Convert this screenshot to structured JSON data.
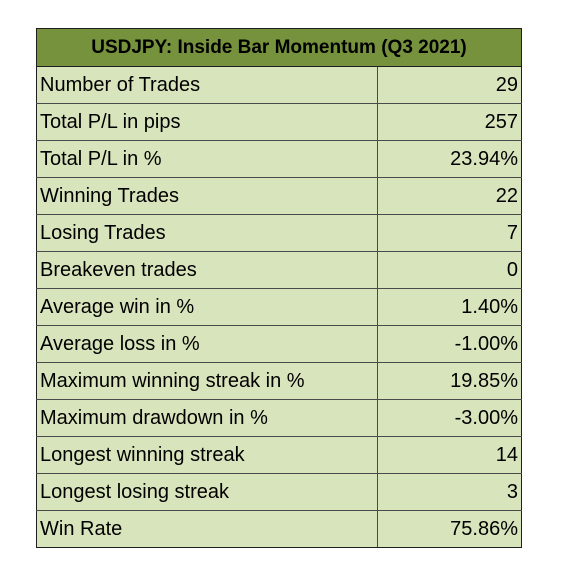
{
  "table": {
    "title": "USDJPY: Inside Bar Momentum (Q3 2021)",
    "header_color": "#76923c",
    "cell_color": "#d8e4bc",
    "rows": [
      {
        "label": "Number of Trades",
        "value": "29"
      },
      {
        "label": "Total P/L in pips",
        "value": "257"
      },
      {
        "label": "Total P/L in %",
        "value": "23.94%"
      },
      {
        "label": "Winning Trades",
        "value": "22"
      },
      {
        "label": "Losing Trades",
        "value": "7"
      },
      {
        "label": "Breakeven trades",
        "value": "0"
      },
      {
        "label": "Average win in %",
        "value": "1.40%"
      },
      {
        "label": "Average loss in %",
        "value": "-1.00%"
      },
      {
        "label": "Maximum winning streak in %",
        "value": "19.85%"
      },
      {
        "label": "Maximum drawdown in %",
        "value": "-3.00%"
      },
      {
        "label": "Longest winning streak",
        "value": "14"
      },
      {
        "label": "Longest losing streak",
        "value": "3"
      },
      {
        "label": "Win Rate",
        "value": "75.86%"
      }
    ]
  }
}
